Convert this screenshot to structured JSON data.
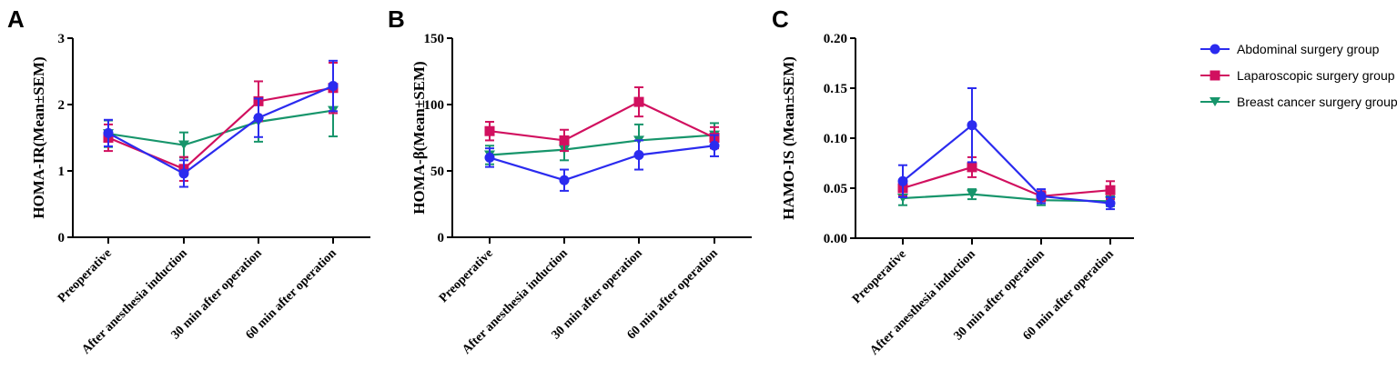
{
  "colors": {
    "abdominal": "#2b2bef",
    "laparoscopic": "#d1105f",
    "breast": "#17956b"
  },
  "legend": [
    {
      "key": "abdominal",
      "label": "Abdominal surgery group",
      "marker": "circle"
    },
    {
      "key": "laparoscopic",
      "label": "Laparoscopic surgery group",
      "marker": "square"
    },
    {
      "key": "breast",
      "label": "Breast cancer surgery group",
      "marker": "triangle-down"
    }
  ],
  "chart_data": [
    {
      "type": "line",
      "panel": "A",
      "ylabel": "HOMA-IR(Mean±SEM)",
      "ylim": [
        0,
        3
      ],
      "yticks": [
        "0",
        "1",
        "2",
        "3"
      ],
      "yticks_values": [
        0,
        1,
        2,
        3
      ],
      "categories": [
        "Preoperative",
        "After anesthesia induction",
        "30 min after operation",
        "60 min after operation"
      ],
      "series": [
        {
          "key": "abdominal",
          "name": "Abdominal surgery group",
          "values": [
            1.57,
            0.96,
            1.8,
            2.28
          ],
          "sem": [
            0.2,
            0.2,
            0.29,
            0.38
          ]
        },
        {
          "key": "laparoscopic",
          "name": "Laparoscopic surgery group",
          "values": [
            1.5,
            1.03,
            2.05,
            2.25
          ],
          "sem": [
            0.2,
            0.18,
            0.3,
            0.38
          ]
        },
        {
          "key": "breast",
          "name": "Breast cancer surgery group",
          "values": [
            1.56,
            1.39,
            1.74,
            1.91
          ],
          "sem": [
            0.2,
            0.19,
            0.3,
            0.39
          ]
        }
      ]
    },
    {
      "type": "line",
      "panel": "B",
      "ylabel": "HOMA-β(Mean±SEM)",
      "ylim": [
        0,
        150
      ],
      "yticks": [
        "0",
        "50",
        "100",
        "150"
      ],
      "yticks_values": [
        0,
        50,
        100,
        150
      ],
      "categories": [
        "Preoperative",
        "After anesthesia induction",
        "30 min after  operation",
        "60 min after operation"
      ],
      "series": [
        {
          "key": "abdominal",
          "name": "Abdominal surgery group",
          "values": [
            60,
            43,
            62,
            69
          ],
          "sem": [
            7,
            8,
            11,
            8
          ]
        },
        {
          "key": "laparoscopic",
          "name": "Laparoscopic surgery group",
          "values": [
            80,
            73,
            102,
            75
          ],
          "sem": [
            7,
            8,
            11,
            8
          ]
        },
        {
          "key": "breast",
          "name": "Breast cancer surgery group",
          "values": [
            62,
            66,
            73,
            77
          ],
          "sem": [
            7,
            8,
            12,
            9
          ]
        }
      ]
    },
    {
      "type": "line",
      "panel": "C",
      "ylabel": "HAMO-IS (Mean±SEM)",
      "ylim": [
        0,
        0.2
      ],
      "yticks": [
        "0.00",
        "0.05",
        "0.10",
        "0.15",
        "0.20"
      ],
      "yticks_values": [
        0,
        0.05,
        0.1,
        0.15,
        0.2
      ],
      "categories": [
        "Preoperative",
        "After anesthesia induction",
        "30 min after operation",
        "60 min after operation"
      ],
      "series": [
        {
          "key": "abdominal",
          "name": "Abdominal surgery group",
          "values": [
            0.057,
            0.113,
            0.042,
            0.035
          ],
          "sem": [
            0.016,
            0.037,
            0.007,
            0.006
          ]
        },
        {
          "key": "laparoscopic",
          "name": "Laparoscopic surgery group",
          "values": [
            0.05,
            0.071,
            0.042,
            0.048
          ],
          "sem": [
            0.008,
            0.01,
            0.005,
            0.009
          ]
        },
        {
          "key": "breast",
          "name": "Breast cancer surgery group",
          "values": [
            0.04,
            0.044,
            0.038,
            0.037
          ],
          "sem": [
            0.007,
            0.005,
            0.005,
            0.005
          ]
        }
      ]
    }
  ]
}
